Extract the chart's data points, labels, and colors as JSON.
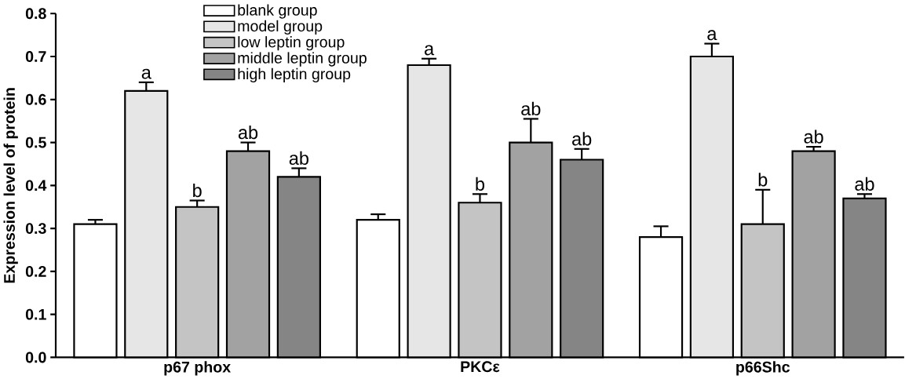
{
  "chart_data": {
    "type": "bar",
    "ylabel": "Expression level of protein",
    "categories": [
      "p67 phox",
      "PKCε",
      "p66Shc"
    ],
    "series": [
      {
        "name": "blank group",
        "color": "#ffffff",
        "values": [
          0.31,
          0.32,
          0.28
        ],
        "errors": [
          [
            0.31,
            0.32
          ],
          [
            0.32,
            0.333
          ],
          [
            0.28,
            0.305
          ]
        ]
      },
      {
        "name": "model group",
        "color": "#e6e6e6",
        "values": [
          0.62,
          0.68,
          0.7
        ],
        "errors": [
          [
            0.62,
            0.64
          ],
          [
            0.68,
            0.695
          ],
          [
            0.7,
            0.73
          ]
        ],
        "value_labels": [
          "a",
          "a",
          "a"
        ]
      },
      {
        "name": "low leptin group",
        "color": "#c4c4c4",
        "values": [
          0.35,
          0.36,
          0.31
        ],
        "errors": [
          [
            0.35,
            0.365
          ],
          [
            0.36,
            0.38
          ],
          [
            0.31,
            0.39
          ]
        ],
        "value_labels": [
          "b",
          "b",
          "b"
        ]
      },
      {
        "name": "middle leptin group",
        "color": "#a2a2a2",
        "values": [
          0.48,
          0.5,
          0.48
        ],
        "errors": [
          [
            0.48,
            0.5
          ],
          [
            0.5,
            0.555
          ],
          [
            0.48,
            0.49
          ]
        ],
        "value_labels": [
          "ab",
          "ab",
          "ab"
        ]
      },
      {
        "name": "high leptin group",
        "color": "#858585",
        "values": [
          0.42,
          0.46,
          0.37
        ],
        "errors": [
          [
            0.42,
            0.44
          ],
          [
            0.46,
            0.485
          ],
          [
            0.37,
            0.38
          ]
        ],
        "value_labels": [
          "ab",
          "ab",
          "ab"
        ]
      }
    ],
    "ylim": [
      0,
      0.8
    ],
    "yticks": [
      {
        "value": 0,
        "label": "0.0"
      },
      {
        "value": 0.1,
        "label": "0.1"
      },
      {
        "value": 0.2,
        "label": "0.2"
      },
      {
        "value": 0.3,
        "label": "0.3"
      },
      {
        "value": 0.4,
        "label": "0.4"
      },
      {
        "value": 0.5,
        "label": "0.5"
      },
      {
        "value": 0.6,
        "label": "0.6"
      },
      {
        "value": 0.7,
        "label": "0.7"
      },
      {
        "value": 0.8,
        "label": "0.8"
      }
    ],
    "legend": "top left",
    "grid": false
  }
}
